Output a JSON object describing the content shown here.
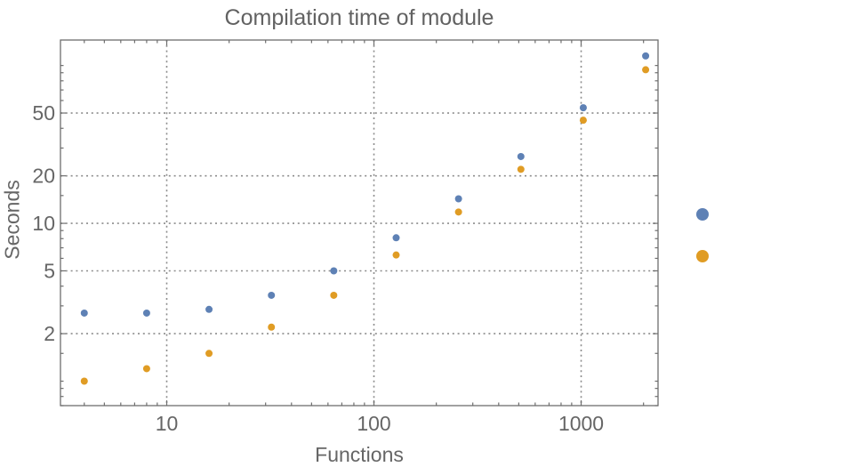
{
  "chart_data": {
    "type": "scatter",
    "title": "Compilation time of module",
    "xlabel": "Functions",
    "ylabel": "Seconds",
    "x_scale": "log",
    "y_scale": "log",
    "xlim": [
      3.07,
      2350
    ],
    "ylim": [
      0.7,
      145
    ],
    "grid": "dotted gray lines at labeled major ticks, frame with inward mirrored ticks",
    "legend_position": "outside-right, markers only, no visible labels",
    "x_major_ticks": [
      10,
      100,
      1000
    ],
    "x_tick_labels": [
      "10",
      "100",
      "1000"
    ],
    "y_major_ticks": [
      2,
      5,
      10,
      20,
      50
    ],
    "y_tick_labels": [
      "2",
      "5",
      "10",
      "20",
      "50"
    ],
    "x": [
      4,
      8,
      16,
      32,
      64,
      128,
      256,
      512,
      1024,
      2048
    ],
    "series": [
      {
        "name": "series-1-blue",
        "color": "#5E81B5",
        "values": [
          2.7,
          2.7,
          2.85,
          3.5,
          5.0,
          8.1,
          14.3,
          26.5,
          54,
          115
        ]
      },
      {
        "name": "series-2-orange",
        "color": "#E09C24",
        "values": [
          1.0,
          1.2,
          1.5,
          2.2,
          3.5,
          6.3,
          11.8,
          22,
          45,
          94
        ]
      }
    ],
    "legend_markers": [
      {
        "series": "series-1-blue",
        "color": "#5E81B5",
        "label": ""
      },
      {
        "series": "series-2-orange",
        "color": "#E09C24",
        "label": ""
      }
    ]
  },
  "colors": {
    "background": "#ffffff",
    "frame": "#6e6e6e",
    "gridline": "#8c8c8c",
    "text": "#666666"
  }
}
